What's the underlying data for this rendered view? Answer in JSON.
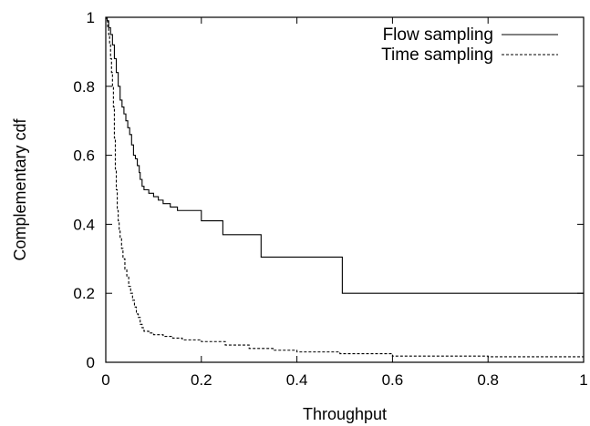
{
  "chart_data": {
    "type": "line",
    "xlabel": "Throughput",
    "ylabel": "Complementary cdf",
    "xlim": [
      0,
      1
    ],
    "ylim": [
      0,
      1
    ],
    "xticks": [
      "0",
      "0.2",
      "0.4",
      "0.6",
      "0.8",
      "1"
    ],
    "yticks": [
      "0",
      "0.2",
      "0.4",
      "0.6",
      "0.8",
      "1"
    ],
    "legend_position": "top-right",
    "grid": false,
    "series": [
      {
        "name": "Flow sampling",
        "line_style": "solid",
        "x": [
          0,
          0.003,
          0.006,
          0.01,
          0.014,
          0.018,
          0.022,
          0.026,
          0.03,
          0.034,
          0.038,
          0.042,
          0.046,
          0.05,
          0.054,
          0.058,
          0.062,
          0.066,
          0.07,
          0.072,
          0.076,
          0.08,
          0.09,
          0.1,
          0.11,
          0.12,
          0.135,
          0.15,
          0.165,
          0.19,
          0.2,
          0.245,
          0.325,
          0.495,
          1.0
        ],
        "y": [
          1.0,
          0.99,
          0.97,
          0.95,
          0.92,
          0.88,
          0.84,
          0.8,
          0.76,
          0.74,
          0.72,
          0.7,
          0.68,
          0.66,
          0.63,
          0.6,
          0.59,
          0.57,
          0.55,
          0.53,
          0.51,
          0.5,
          0.49,
          0.48,
          0.47,
          0.46,
          0.45,
          0.44,
          0.44,
          0.44,
          0.41,
          0.37,
          0.305,
          0.2,
          0.2
        ]
      },
      {
        "name": "Time sampling",
        "line_style": "dashed",
        "x": [
          0,
          0.002,
          0.004,
          0.006,
          0.008,
          0.01,
          0.012,
          0.014,
          0.016,
          0.018,
          0.02,
          0.022,
          0.024,
          0.026,
          0.028,
          0.03,
          0.033,
          0.036,
          0.04,
          0.044,
          0.048,
          0.052,
          0.056,
          0.06,
          0.064,
          0.068,
          0.072,
          0.076,
          0.08,
          0.09,
          0.1,
          0.12,
          0.14,
          0.16,
          0.2,
          0.25,
          0.3,
          0.35,
          0.4,
          0.49,
          0.6,
          0.8,
          1.0
        ],
        "y": [
          1.0,
          0.99,
          0.97,
          0.95,
          0.92,
          0.88,
          0.84,
          0.8,
          0.74,
          0.65,
          0.56,
          0.5,
          0.44,
          0.41,
          0.38,
          0.36,
          0.33,
          0.3,
          0.27,
          0.25,
          0.22,
          0.2,
          0.18,
          0.16,
          0.14,
          0.13,
          0.11,
          0.1,
          0.09,
          0.085,
          0.08,
          0.075,
          0.07,
          0.065,
          0.06,
          0.05,
          0.04,
          0.035,
          0.03,
          0.025,
          0.018,
          0.016,
          0.015
        ]
      }
    ]
  }
}
